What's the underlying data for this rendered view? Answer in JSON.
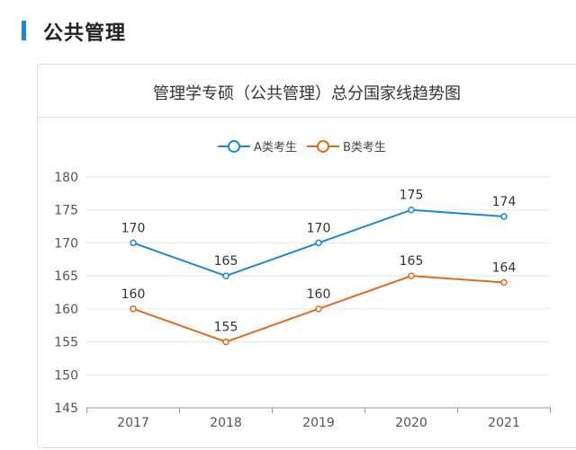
{
  "section": {
    "title": "公共管理"
  },
  "chart_data": {
    "type": "line",
    "title": "管理学专硕（公共管理）总分国家线趋势图",
    "xlabel": "",
    "ylabel": "",
    "categories": [
      "2017",
      "2018",
      "2019",
      "2020",
      "2021"
    ],
    "ylim": [
      145,
      180
    ],
    "yticks": [
      "145",
      "150",
      "155",
      "160",
      "165",
      "170",
      "175",
      "180"
    ],
    "grid": true,
    "legend_position": "top-center",
    "series": [
      {
        "name": "A类考生",
        "values": [
          170,
          165,
          170,
          175,
          174
        ],
        "color": "#1a87d8"
      },
      {
        "name": "B类考生",
        "values": [
          160,
          155,
          160,
          165,
          164
        ],
        "color": "#e06a1b"
      }
    ]
  }
}
